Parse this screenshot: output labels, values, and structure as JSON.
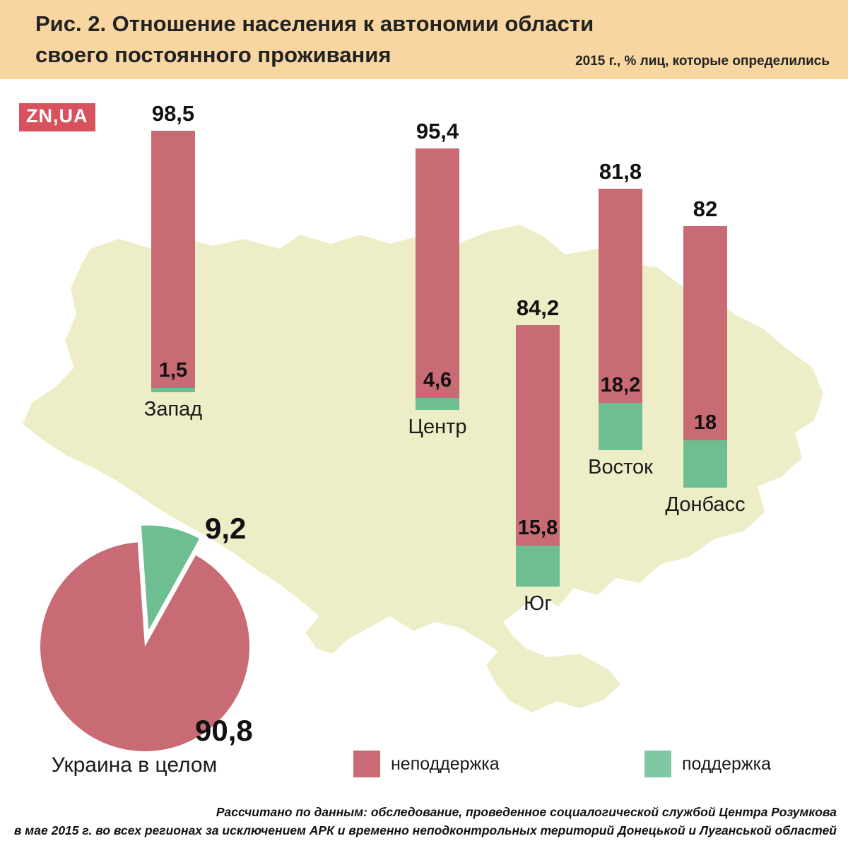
{
  "header": {
    "title_line1": "Рис. 2. Отношение населения к автономии области",
    "title_line2": "своего постоянного проживания",
    "subtitle": "2015 г., % лиц, которые определились",
    "logo": "ZN,UA"
  },
  "colors": {
    "header_band": "#f8d6a2",
    "against": "#c96b74",
    "support": "#6fbe91",
    "support_legend": "#7fc7a5",
    "map_fill": "#ededc7",
    "logo_bg": "#d8525e"
  },
  "chart_data": {
    "type": "bar",
    "stacked": true,
    "unit": "%",
    "title": "Отношение населения к автономии области своего постоянного проживания",
    "subtitle": "2015 г., % лиц, которые определились",
    "ylim": [
      0,
      100
    ],
    "categories": [
      "Запад",
      "Центр",
      "Юг",
      "Восток",
      "Донбасс"
    ],
    "series": [
      {
        "name": "неподдержка",
        "values": [
          98.5,
          95.4,
          84.2,
          81.8,
          82
        ]
      },
      {
        "name": "поддержка",
        "values": [
          1.5,
          4.6,
          15.8,
          18.2,
          18
        ]
      }
    ],
    "labels": {
      "against": [
        "98,5",
        "95,4",
        "84,2",
        "81,8",
        "82"
      ],
      "support": [
        "1,5",
        "4,6",
        "15,8",
        "18,2",
        "18"
      ]
    },
    "pie": {
      "type": "pie",
      "label": "Украина в целом",
      "slices": [
        {
          "name": "неподдержка",
          "value": 90.8,
          "label": "90,8"
        },
        {
          "name": "поддержка",
          "value": 9.2,
          "label": "9,2"
        }
      ]
    }
  },
  "legend": [
    {
      "label": "неподдержка",
      "color": "#c96b74"
    },
    {
      "label": "поддержка",
      "color": "#7fc7a5"
    }
  ],
  "footer": {
    "line1": "Рассчитано по данным: обследование, проведенное социалогической службой Центра Розумкова",
    "line2": "в мае 2015 г. во всех регионах за исключением АРК и временно неподконтрольных територий Донецькой и Луганськой областей"
  }
}
